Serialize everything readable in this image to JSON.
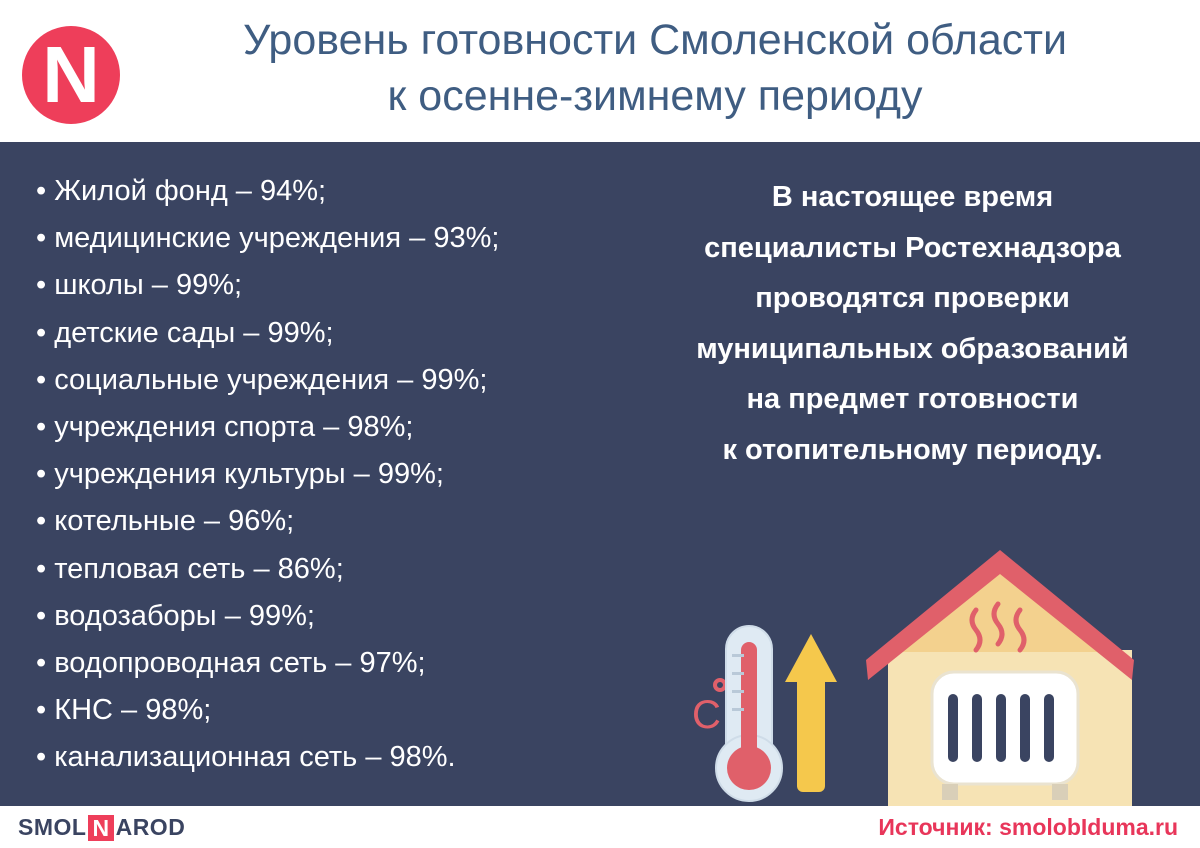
{
  "header": {
    "logo_letter": "N",
    "title_line1": "Уровень готовности Смоленской области",
    "title_line2": "к осенне-зимнему периоду"
  },
  "items": [
    "Жилой фонд – 94%;",
    "медицинские учреждения – 93%;",
    "школы – 99%;",
    "детские сады – 99%;",
    "социальные учреждения – 99%;",
    "учреждения спорта – 98%;",
    "учреждения культуры – 99%;",
    "котельные – 96%;",
    "тепловая сеть – 86%;",
    "водозаборы – 99%;",
    "водопроводная сеть – 97%;",
    "КНС – 98%;",
    "канализационная сеть – 98%."
  ],
  "note": {
    "lines": [
      "В настоящее время",
      "специалисты Ростехнадзора",
      "проводятся проверки",
      "муниципальных образований",
      "на предмет готовности",
      "к отопительному периоду."
    ]
  },
  "illustration": {
    "thermo_unit": "C"
  },
  "footer": {
    "brand_left": "SMOL",
    "brand_n": "N",
    "brand_right": "AROD",
    "source": "Источник: smolobIduma.ru"
  },
  "colors": {
    "panel": "#3a4461",
    "title": "#3f5d82",
    "accent": "#ee3e5a",
    "roof": "#e0606a",
    "house": "#f6e3b4",
    "arrow": "#f5c84c"
  }
}
